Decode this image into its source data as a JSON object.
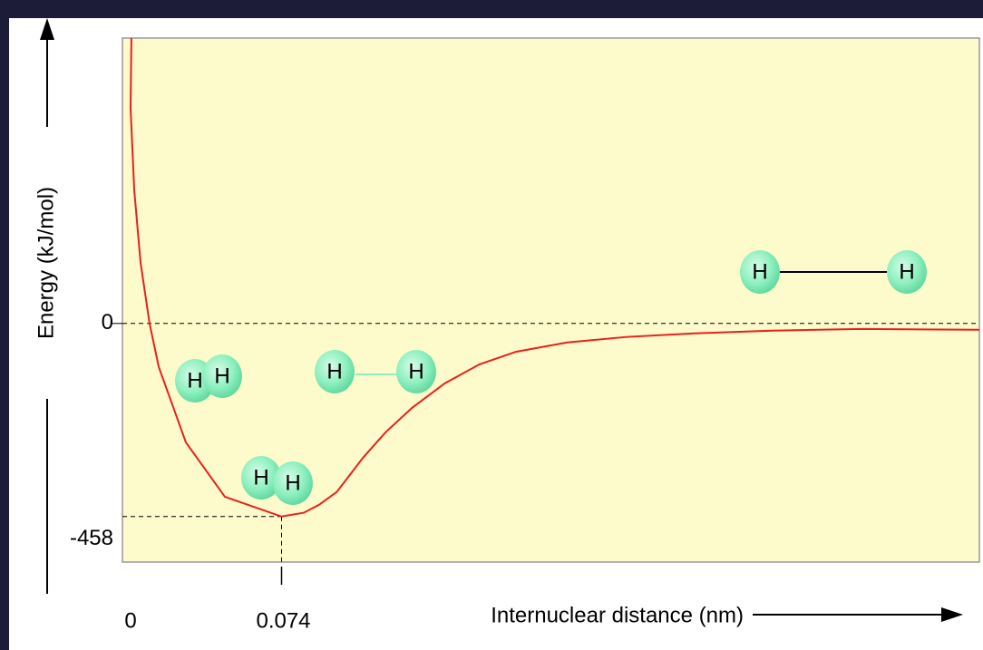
{
  "chart_data": {
    "type": "line",
    "x_label": "Internuclear distance (nm)",
    "y_label": "Energy (kJ/mol)",
    "xlim": [
      -0.004,
      0.416
    ],
    "ylim": [
      -566,
      677
    ],
    "xticks": [
      0,
      0.074
    ],
    "yticks": [
      0,
      -458
    ],
    "series": [
      {
        "color": "#e8201c",
        "x": [
          0.0004,
          0.0,
          0.0018,
          0.0049,
          0.0093,
          0.0138,
          0.0271,
          0.0462,
          0.074,
          0.0849,
          0.0924,
          0.101,
          0.114,
          0.125,
          0.138,
          0.154,
          0.171,
          0.189,
          0.214,
          0.243,
          0.274,
          0.314,
          0.358,
          0.416
        ],
        "values": [
          677,
          510,
          316,
          144,
          0,
          -103,
          -282,
          -411,
          -458,
          -449,
          -430,
          -400,
          -318,
          -258,
          -200,
          -142,
          -97,
          -67,
          -45,
          -32,
          -24,
          -17,
          -13,
          -15
        ]
      }
    ],
    "annotations": [
      "H",
      "H",
      "H",
      "H",
      "H",
      "H",
      "H",
      "H"
    ]
  }
}
